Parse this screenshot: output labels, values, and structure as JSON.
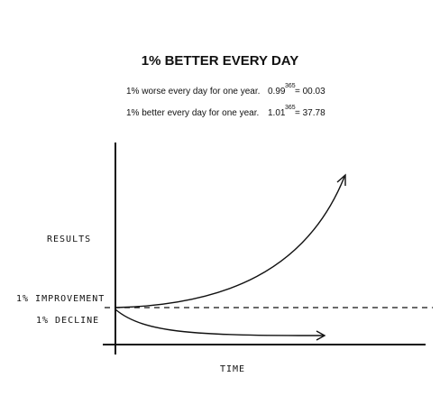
{
  "header": {
    "title": "1% BETTER EVERY DAY"
  },
  "formulas": [
    {
      "text": "1% worse every day for one year.",
      "base": "0.99",
      "exponent": "365",
      "result": "= 00.03"
    },
    {
      "text": "1% better every day for one year.",
      "base": "1.01",
      "exponent": "365",
      "result": "= 37.78"
    }
  ],
  "labels": {
    "y_axis": "RESULTS",
    "improvement": "1% IMPROVEMENT",
    "decline": "1% DECLINE",
    "x_axis": "TIME"
  }
}
